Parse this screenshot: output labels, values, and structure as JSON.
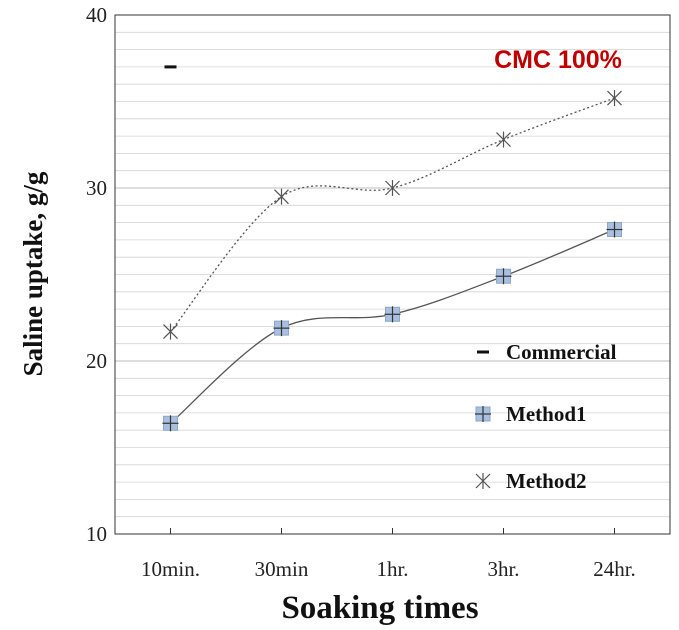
{
  "chart_data": {
    "type": "line",
    "categories": [
      "10min.",
      "30min",
      "1hr.",
      "3hr.",
      "24hr."
    ],
    "series": [
      {
        "name": "Commercial",
        "values": [
          37.0,
          null,
          null,
          null,
          null
        ],
        "marker": "dash",
        "line": "none"
      },
      {
        "name": "Method1",
        "values": [
          16.4,
          21.9,
          22.7,
          24.9,
          27.6
        ],
        "marker": "square-plus",
        "line": "solid"
      },
      {
        "name": "Method2",
        "values": [
          21.7,
          29.5,
          30.0,
          32.8,
          35.2
        ],
        "marker": "star",
        "line": "dotted"
      }
    ],
    "xlabel": "Soaking times",
    "ylabel": "Saline uptake, g/g",
    "ylim": [
      10,
      40
    ],
    "yticks": [
      "10",
      "20",
      "30",
      "40"
    ],
    "annotation": "CMC 100%",
    "grid": true,
    "legend_position": "right",
    "colors": {
      "annotation": "#c00000",
      "marker_fill": "#a9bfe0",
      "marker_edge": "#8fa6c8",
      "line": "#555555",
      "grid": "#d4d4d4"
    }
  }
}
